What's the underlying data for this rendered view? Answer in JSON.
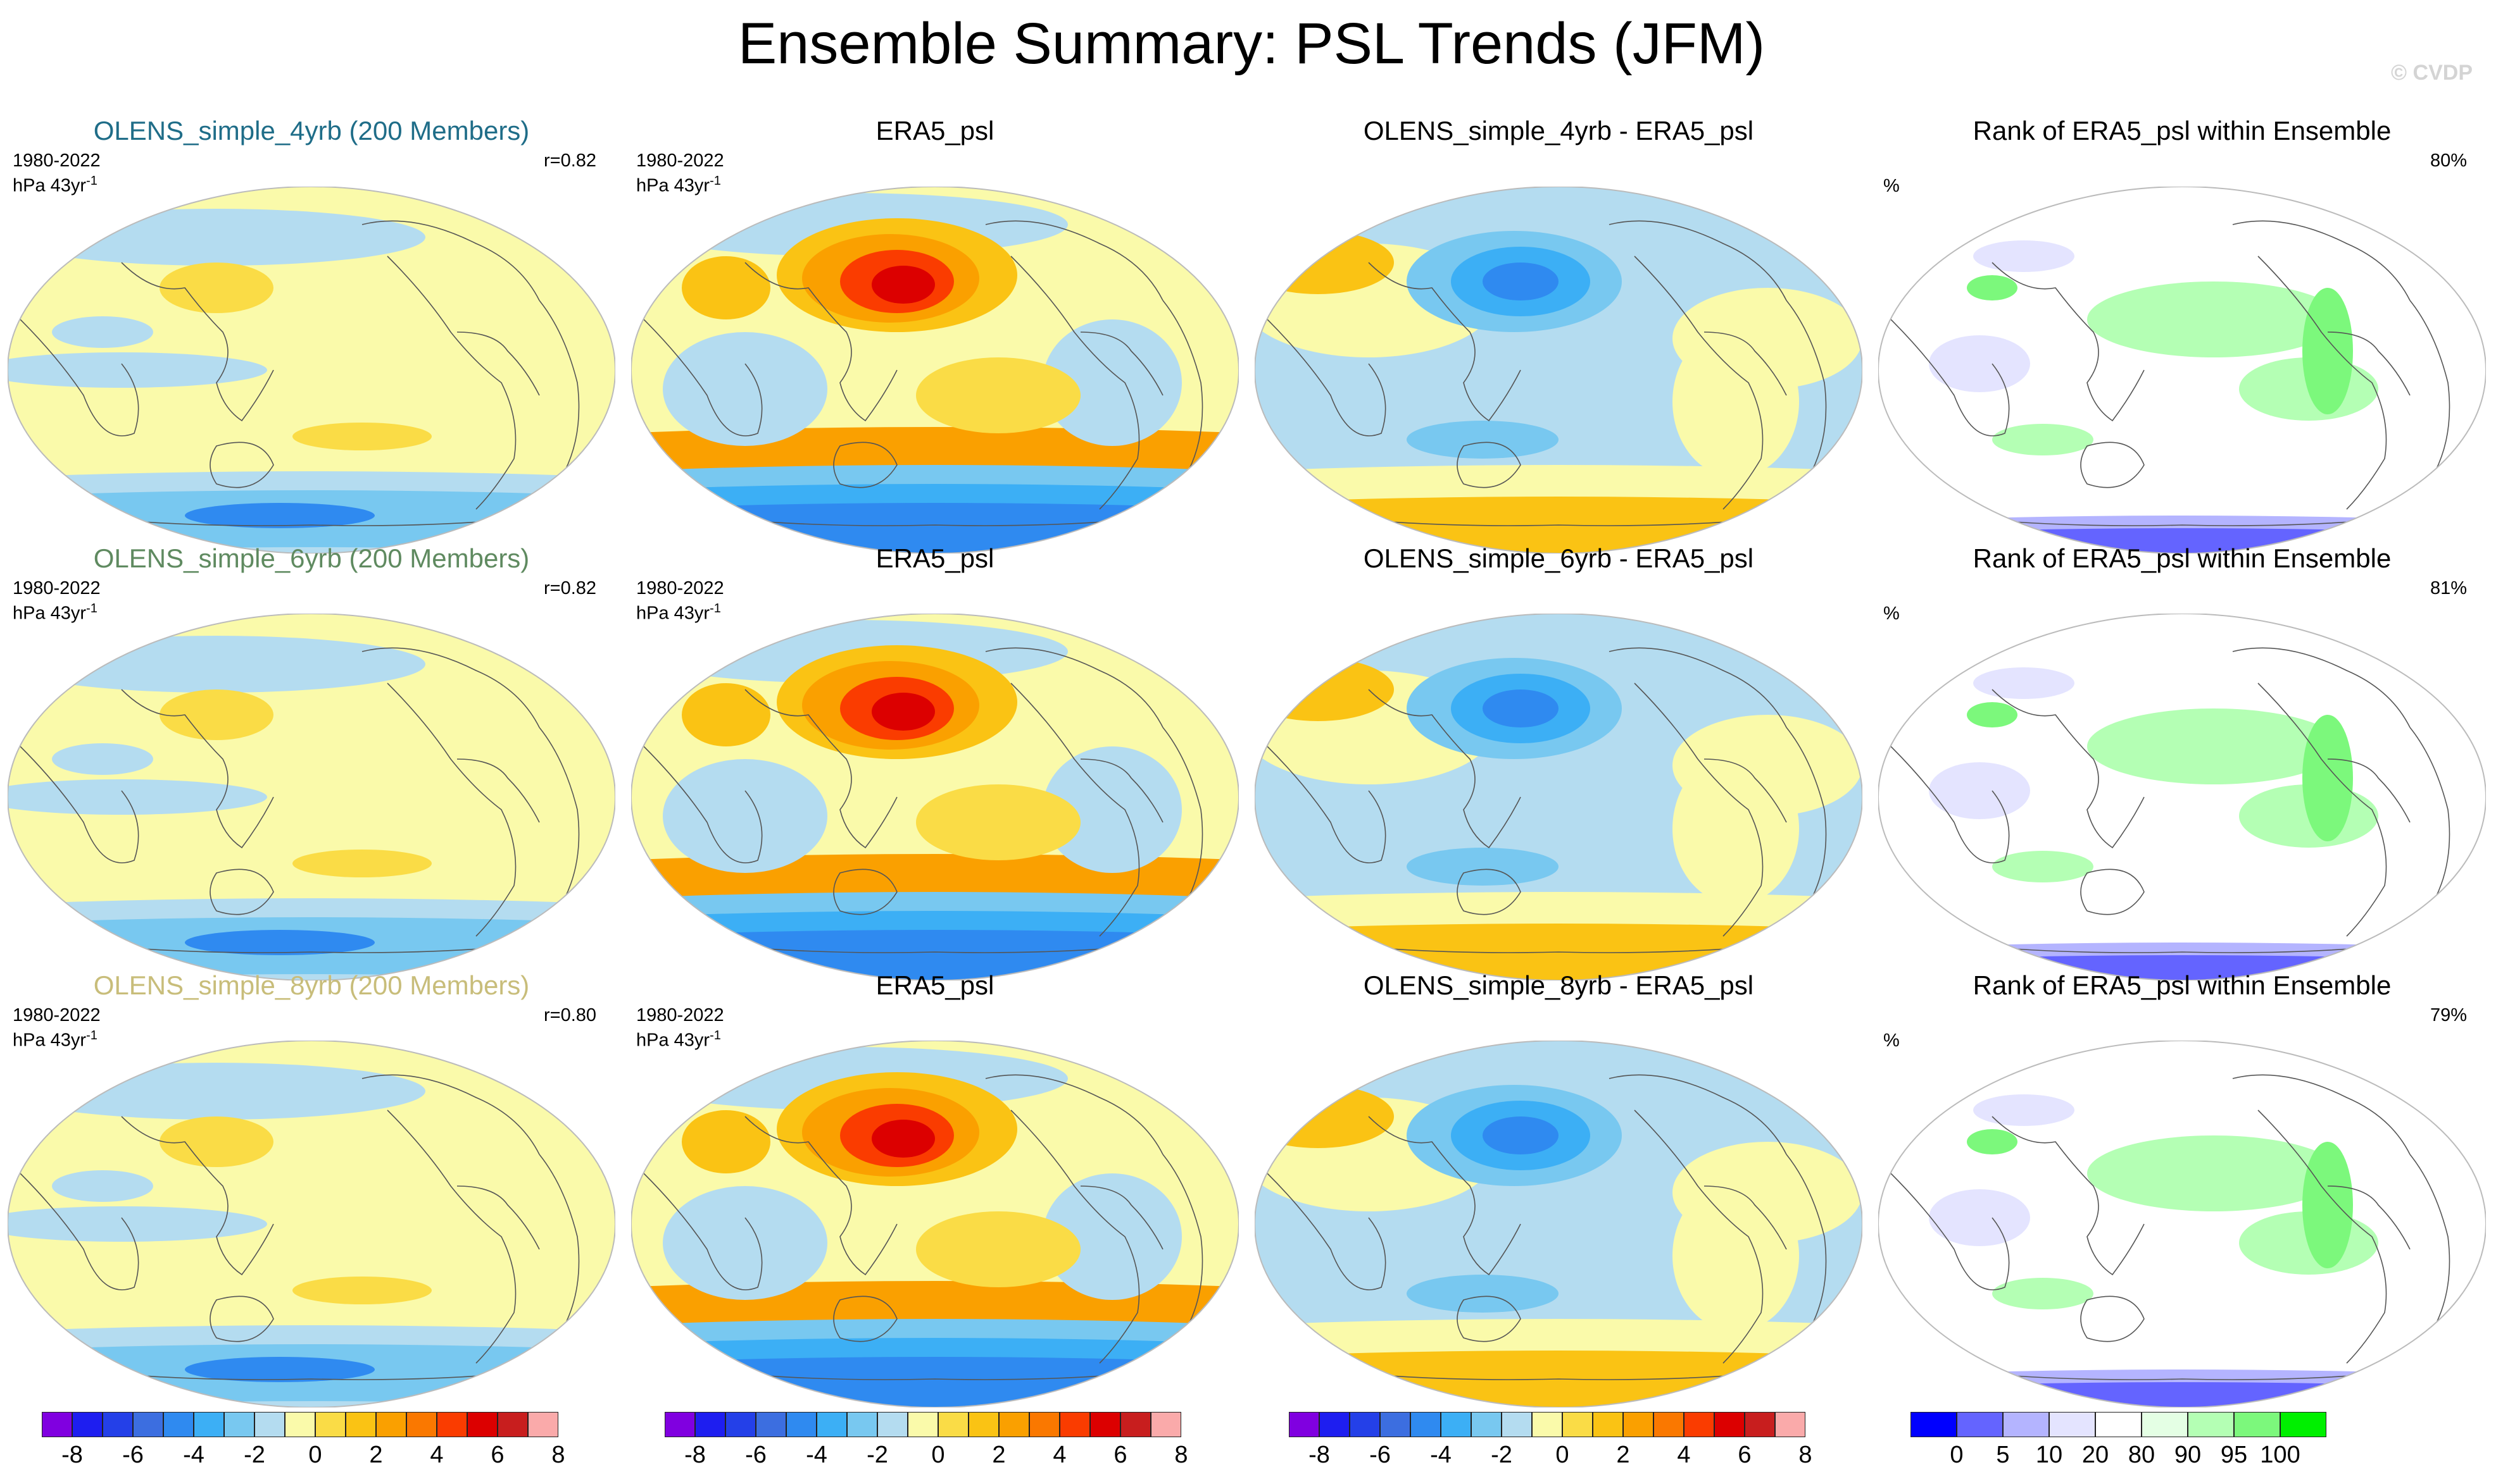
{
  "title": "Ensemble Summary: PSL Trends (JFM)",
  "copyright": "© CVDP",
  "rows": [
    {
      "ensemble": {
        "title": "OLENS_simple_4yrb (200 Members)",
        "title_color": "#1f6d88",
        "period": "1980-2022",
        "units": "hPa 43yr",
        "units_sup": "-1",
        "r": "r=0.82"
      },
      "obs": {
        "title": "ERA5_psl",
        "period": "1980-2022",
        "units": "hPa 43yr",
        "units_sup": "-1"
      },
      "diff": {
        "title": "OLENS_simple_4yrb - ERA5_psl"
      },
      "rank": {
        "title": "Rank of ERA5_psl within Ensemble",
        "unit": "%",
        "pct": "80%"
      }
    },
    {
      "ensemble": {
        "title": "OLENS_simple_6yrb (200 Members)",
        "title_color": "#5f8a60",
        "period": "1980-2022",
        "units": "hPa 43yr",
        "units_sup": "-1",
        "r": "r=0.82"
      },
      "obs": {
        "title": "ERA5_psl",
        "period": "1980-2022",
        "units": "hPa 43yr",
        "units_sup": "-1"
      },
      "diff": {
        "title": "OLENS_simple_6yrb - ERA5_psl"
      },
      "rank": {
        "title": "Rank of ERA5_psl within Ensemble",
        "unit": "%",
        "pct": "81%"
      }
    },
    {
      "ensemble": {
        "title": "OLENS_simple_8yrb (200 Members)",
        "title_color": "#c8bd7a",
        "period": "1980-2022",
        "units": "hPa 43yr",
        "units_sup": "-1",
        "r": "r=0.80"
      },
      "obs": {
        "title": "ERA5_psl",
        "period": "1980-2022",
        "units": "hPa 43yr",
        "units_sup": "-1"
      },
      "diff": {
        "title": "OLENS_simple_8yrb - ERA5_psl"
      },
      "rank": {
        "title": "Rank of ERA5_psl within Ensemble",
        "unit": "%",
        "pct": "79%"
      }
    }
  ],
  "trend_colorbar": {
    "colors": [
      "#8000e0",
      "#1e1ef0",
      "#2440e8",
      "#3c6ee0",
      "#2f8af0",
      "#3caff5",
      "#78c8f0",
      "#b4dcf0",
      "#fafaaa",
      "#fadc46",
      "#fac314",
      "#faa000",
      "#fa7800",
      "#fa3c00",
      "#dc0000",
      "#c81e1e",
      "#faaaaa"
    ],
    "labels": [
      "-8",
      "-6",
      "-4",
      "-2",
      "0",
      "2",
      "4",
      "6",
      "8"
    ]
  },
  "rank_colorbar": {
    "colors": [
      "#0000ff",
      "#6464ff",
      "#b4b4ff",
      "#e4e4ff",
      "#ffffff",
      "#e4ffe4",
      "#b4ffb4",
      "#7cf87c",
      "#00f000"
    ],
    "labels": [
      "0",
      "5",
      "10",
      "20",
      "80",
      "90",
      "95",
      "100"
    ]
  }
}
